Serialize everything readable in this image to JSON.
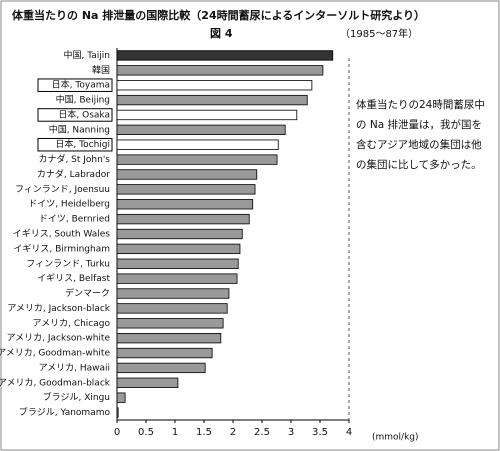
{
  "chart_data": {
    "type": "hbar",
    "title": "体重当たりの Na 排泄量の国際比較（24時間蓄尿によるインターソルト研究より）",
    "subtitle": "図 4",
    "period": "（1985～87年）",
    "note": [
      "体重当たりの24時間蓄尿中",
      "の Na 排泄量は，我が国を",
      "含むアジア地域の集団は他",
      "の集団に比して多かった。"
    ],
    "x_label": "(mmol/kg)",
    "categories": [
      "中国, Taijin",
      "韓国",
      "日本, Toyama",
      "中国, Beijing",
      "日本, Osaka",
      "中国, Nanning",
      "日本, Tochigi",
      "カナダ, St John's",
      "カナダ, Labrador",
      "フィンランド, Joensuu",
      "ドイツ, Heidelberg",
      "ドイツ, Bernried",
      "イギリス, South Wales",
      "イギリス, Birmingham",
      "フィンランド, Turku",
      "イギリス, Belfast",
      "デンマーク",
      "アメリカ, Jackson-black",
      "アメリカ, Chicago",
      "アメリカ, Jackson-white",
      "アメリカ, Goodman-white",
      "アメリカ, Hawaii",
      "アメリカ, Goodman-black",
      "ブラジル, Xingu",
      "ブラジル, Yanomamo"
    ],
    "values": [
      3.72,
      3.55,
      3.36,
      3.28,
      3.1,
      2.9,
      2.78,
      2.76,
      2.41,
      2.38,
      2.34,
      2.28,
      2.16,
      2.12,
      2.09,
      2.07,
      1.93,
      1.9,
      1.83,
      1.79,
      1.64,
      1.52,
      1.05,
      0.14,
      0.02
    ],
    "colors": [
      "#333333",
      "#999999",
      "#ffffff",
      "#999999",
      "#ffffff",
      "#999999",
      "#ffffff",
      "#999999",
      "#999999",
      "#999999",
      "#999999",
      "#999999",
      "#999999",
      "#999999",
      "#999999",
      "#999999",
      "#999999",
      "#999999",
      "#999999",
      "#999999",
      "#999999",
      "#999999",
      "#999999",
      "#999999",
      "#999999"
    ],
    "xlim": [
      0,
      4
    ],
    "xticks": [
      0,
      0.5,
      1,
      1.5,
      2,
      2.5,
      3,
      3.5,
      4
    ]
  }
}
